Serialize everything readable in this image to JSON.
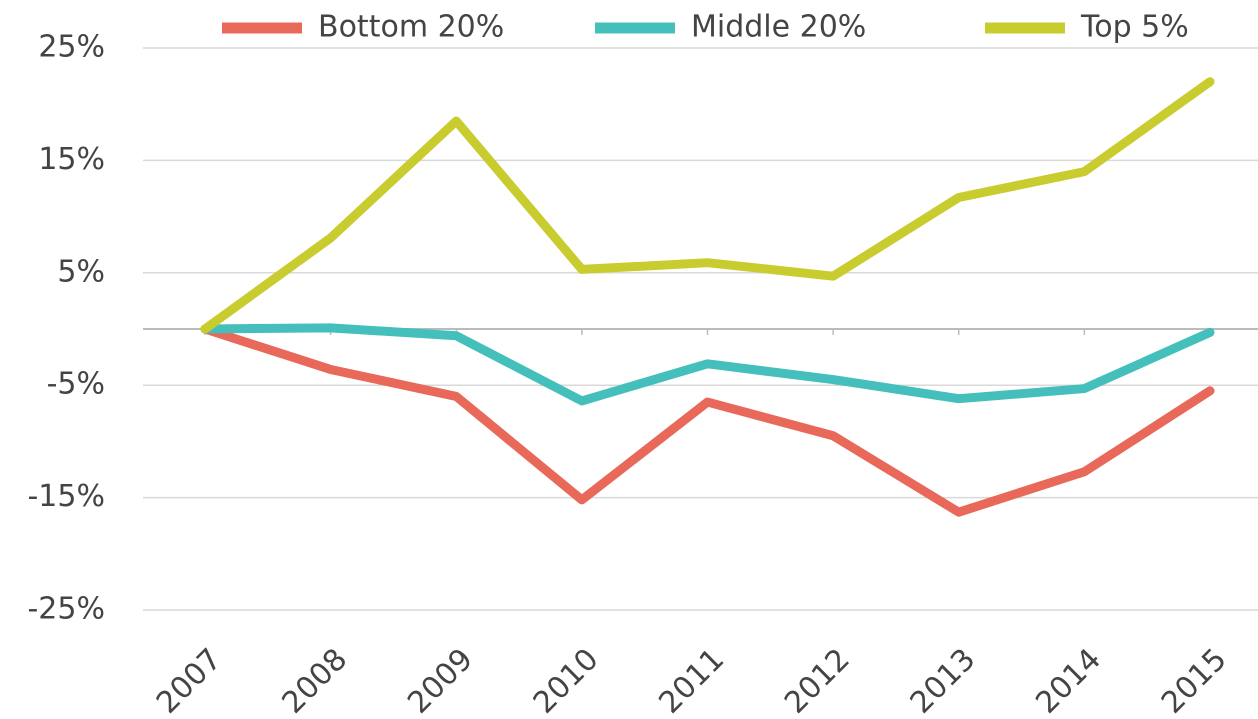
{
  "chart_data": {
    "type": "line",
    "categories": [
      "2007",
      "2008",
      "2009",
      "2010",
      "2011",
      "2012",
      "2013",
      "2014",
      "2015"
    ],
    "series": [
      {
        "name": "Bottom 20%",
        "color": "#e8685a",
        "values": [
          0,
          -3.6,
          -6.0,
          -15.2,
          -6.5,
          -9.5,
          -16.3,
          -12.7,
          -5.5
        ]
      },
      {
        "name": "Middle 20%",
        "color": "#44bfbb",
        "values": [
          0,
          0.1,
          -0.6,
          -6.4,
          -3.1,
          -4.5,
          -6.2,
          -5.3,
          -0.3
        ]
      },
      {
        "name": "Top 5%",
        "color": "#c8cc2e",
        "values": [
          0,
          8.1,
          18.5,
          5.3,
          5.9,
          4.7,
          11.7,
          14.0,
          22.0
        ]
      }
    ],
    "ylim": [
      -25,
      25
    ],
    "yticks": [
      {
        "value": 25,
        "label": "25%"
      },
      {
        "value": 15,
        "label": "15%"
      },
      {
        "value": 5,
        "label": "5%"
      },
      {
        "value": -5,
        "label": "-5%"
      },
      {
        "value": -15,
        "label": "-15%"
      },
      {
        "value": -25,
        "label": "-25%"
      }
    ],
    "grid": true,
    "legend": "top"
  }
}
